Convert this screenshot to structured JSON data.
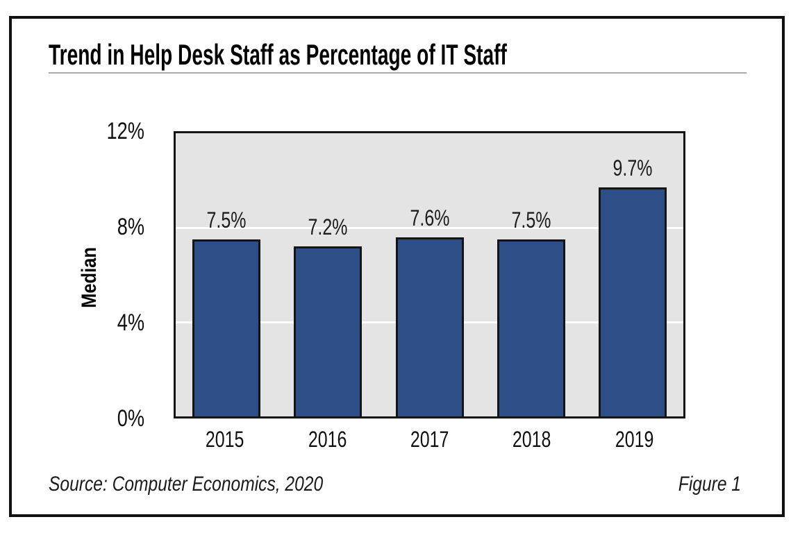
{
  "figure": {
    "source": "Source: Computer Economics, 2020",
    "figure_label": "Figure 1"
  },
  "chart_data": {
    "type": "bar",
    "title": "Trend in Help Desk Staff as Percentage of IT Staff",
    "categories": [
      "2015",
      "2016",
      "2017",
      "2018",
      "2019"
    ],
    "values": [
      7.5,
      7.2,
      7.6,
      7.5,
      9.7
    ],
    "data_labels": [
      "7.5%",
      "7.2%",
      "7.6%",
      "7.5%",
      "9.7%"
    ],
    "xlabel": "",
    "ylabel": "Median",
    "ylim": [
      0,
      12
    ],
    "yticks": [
      {
        "value": 12,
        "label": "12%"
      },
      {
        "value": 8,
        "label": "8%"
      },
      {
        "value": 4,
        "label": "4%"
      },
      {
        "value": 0,
        "label": "0%"
      }
    ],
    "grid": "horizontal-white-lines-behind-bars",
    "legend": "none",
    "colors": {
      "bar_fill": "#2d4e86",
      "bar_border": "#141414",
      "plot_background": "#e4e4e4",
      "gridline": "#ffffff",
      "figure_border": "#111111",
      "title_underline": "#aaaaaa",
      "text": "#111111"
    }
  }
}
